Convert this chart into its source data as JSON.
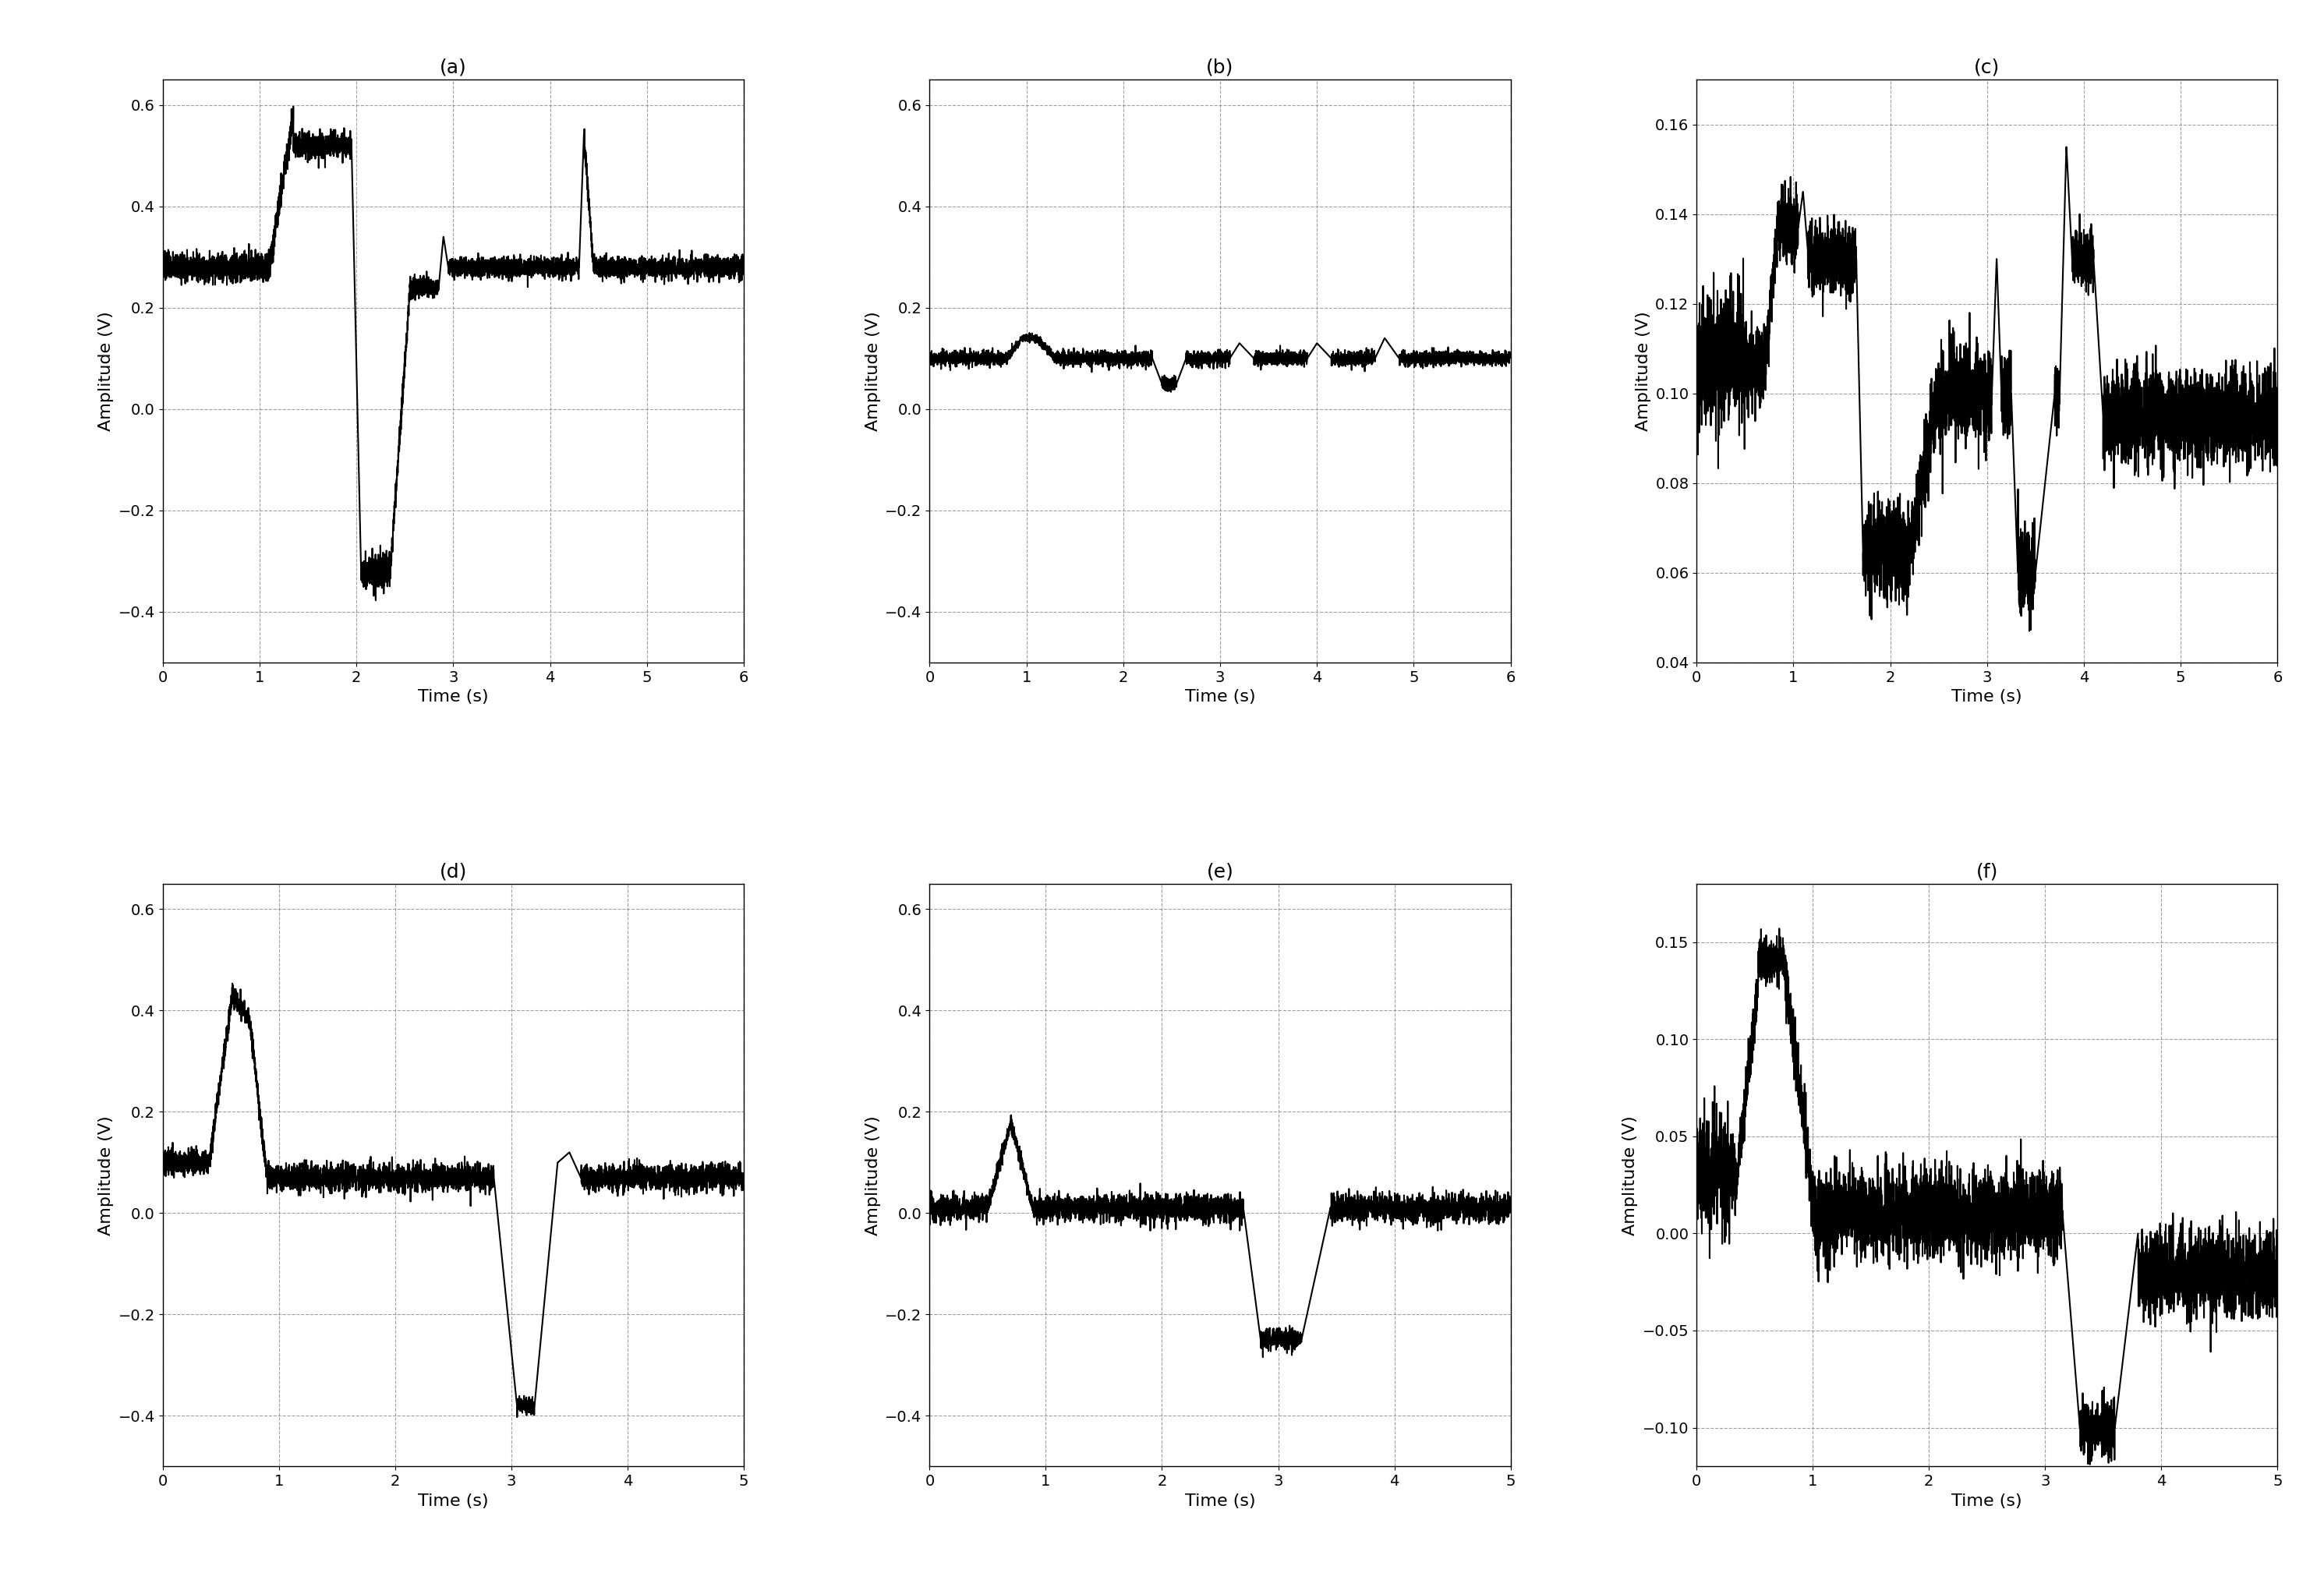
{
  "panels": [
    {
      "label": "(a)",
      "xlim": [
        0,
        6
      ],
      "ylim": [
        -0.5,
        0.65
      ],
      "yticks": [
        -0.4,
        -0.2,
        0,
        0.2,
        0.4,
        0.6
      ],
      "xticks": [
        0,
        1,
        2,
        3,
        4,
        5,
        6
      ],
      "xlabel": "Time (s)",
      "ylabel": "Amplitude (V)",
      "signal_type": "a"
    },
    {
      "label": "(b)",
      "xlim": [
        0,
        6
      ],
      "ylim": [
        -0.5,
        0.65
      ],
      "yticks": [
        -0.4,
        -0.2,
        0,
        0.2,
        0.4,
        0.6
      ],
      "xticks": [
        0,
        1,
        2,
        3,
        4,
        5,
        6
      ],
      "xlabel": "Time (s)",
      "ylabel": "Amplitude (V)",
      "signal_type": "b"
    },
    {
      "label": "(c)",
      "xlim": [
        0,
        6
      ],
      "ylim": [
        0.04,
        0.17
      ],
      "yticks": [
        0.04,
        0.06,
        0.08,
        0.1,
        0.12,
        0.14,
        0.16
      ],
      "xticks": [
        0,
        1,
        2,
        3,
        4,
        5,
        6
      ],
      "xlabel": "Time (s)",
      "ylabel": "Amplitude (V)",
      "signal_type": "c"
    },
    {
      "label": "(d)",
      "xlim": [
        0,
        5
      ],
      "ylim": [
        -0.5,
        0.65
      ],
      "yticks": [
        -0.4,
        -0.2,
        0,
        0.2,
        0.4,
        0.6
      ],
      "xticks": [
        0,
        1,
        2,
        3,
        4,
        5
      ],
      "xlabel": "Time (s)",
      "ylabel": "Amplitude (V)",
      "signal_type": "d"
    },
    {
      "label": "(e)",
      "xlim": [
        0,
        5
      ],
      "ylim": [
        -0.5,
        0.65
      ],
      "yticks": [
        -0.4,
        -0.2,
        0,
        0.2,
        0.4,
        0.6
      ],
      "xticks": [
        0,
        1,
        2,
        3,
        4,
        5
      ],
      "xlabel": "Time (s)",
      "ylabel": "Amplitude (V)",
      "signal_type": "e"
    },
    {
      "label": "(f)",
      "xlim": [
        0,
        5
      ],
      "ylim": [
        -0.12,
        0.18
      ],
      "yticks": [
        -0.1,
        -0.05,
        0,
        0.05,
        0.1,
        0.15
      ],
      "xticks": [
        0,
        1,
        2,
        3,
        4,
        5
      ],
      "xlabel": "Time (s)",
      "ylabel": "Amplitude (V)",
      "signal_type": "f"
    }
  ],
  "line_color": "#000000",
  "line_width": 1.5,
  "grid_color": "#888888",
  "grid_style": "--",
  "grid_alpha": 0.8,
  "background_color": "#ffffff",
  "title_fontsize": 18,
  "label_fontsize": 16,
  "tick_fontsize": 14
}
